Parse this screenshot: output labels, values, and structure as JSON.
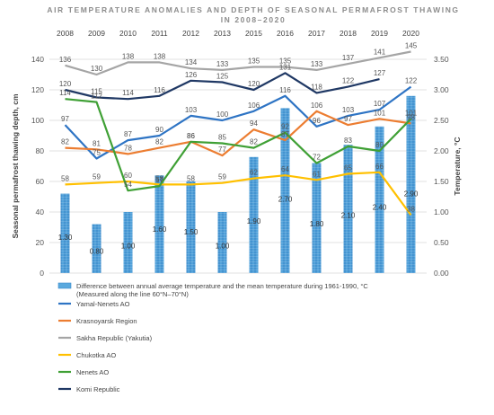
{
  "chart_data": {
    "type": "bar+line",
    "title": "AIR TEMPERATURE ANOMALIES AND DEPTH OF SEASONAL PERMAFROST THAWING IN 2008–2020",
    "ylabel_left": "Seasonal permafrost thawing depth, cm",
    "ylabel_right": "Temperature, °C",
    "ylim_left": [
      0,
      140
    ],
    "yticks_left": [
      "0",
      "20",
      "40",
      "60",
      "80",
      "100",
      "120",
      "140"
    ],
    "ylim_right": [
      0,
      3.5
    ],
    "yticks_right": [
      "0.00",
      "0.50",
      "1.00",
      "1.50",
      "2.00",
      "2.50",
      "3.00",
      "3.50"
    ],
    "categories": [
      "2008",
      "2009",
      "2010",
      "2011",
      "2012",
      "2013",
      "2015",
      "2016",
      "2017",
      "2018",
      "2019",
      "2020"
    ],
    "grid": true,
    "legend_position": "bottom",
    "bars": {
      "name": "Difference between annual average temperature and the mean temperature during 1961-1990, °C (Measured along the line 60°N–70°N)",
      "axis": "right",
      "color": "#5aa9de",
      "values": [
        1.3,
        0.8,
        1.0,
        1.6,
        1.5,
        1.0,
        1.9,
        2.7,
        1.8,
        2.1,
        2.4,
        2.9
      ],
      "labels": [
        "1.30",
        "0.80",
        "1.00",
        "1.60",
        "1.50",
        "1.00",
        "1.90",
        "2.70",
        "1.80",
        "2.10",
        "2.40",
        "2.90"
      ]
    },
    "series": [
      {
        "name": "Yamal-Nenets AO",
        "color": "#2e74c4",
        "values": [
          97,
          75,
          87,
          90,
          103,
          100,
          106,
          116,
          96,
          103,
          107,
          122
        ]
      },
      {
        "name": "Krasnoyarsk Region",
        "color": "#ec7d31",
        "values": [
          82,
          81,
          78,
          82,
          86,
          77,
          94,
          87,
          106,
          97,
          101,
          98
        ]
      },
      {
        "name": "Sakha Republic (Yakutia)",
        "color": "#a5a5a5",
        "values": [
          136,
          130,
          138,
          138,
          134,
          133,
          135,
          135,
          133,
          137,
          141,
          145
        ]
      },
      {
        "name": "Chukotka AO",
        "color": "#ffc000",
        "values": [
          58,
          59,
          60,
          58,
          58,
          59,
          62,
          64,
          61,
          65,
          66,
          38
        ]
      },
      {
        "name": "Nenets AO",
        "color": "#3fa035",
        "values": [
          114,
          112,
          54,
          57,
          86,
          85,
          82,
          92,
          72,
          83,
          80,
          101
        ]
      },
      {
        "name": "Komi Republic",
        "color": "#1f3864",
        "values": [
          120,
          115,
          114,
          116,
          126,
          125,
          120,
          131,
          118,
          122,
          127,
          null
        ]
      }
    ]
  }
}
